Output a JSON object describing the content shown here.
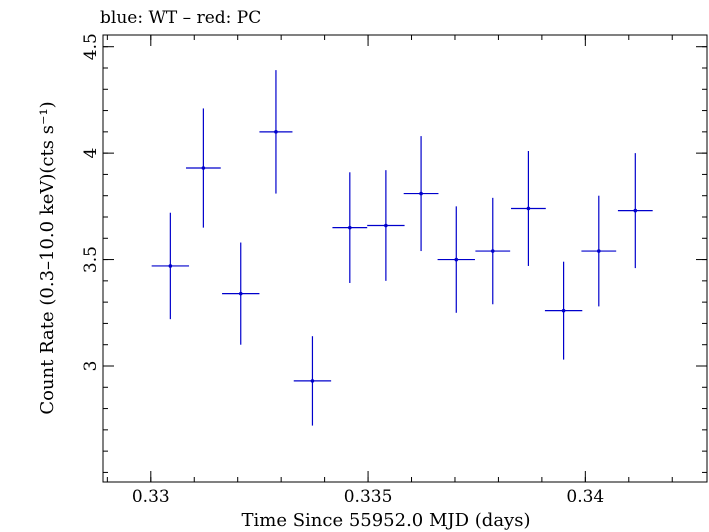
{
  "chart_data": {
    "type": "scatter",
    "title": "blue: WT – red: PC",
    "xlabel": "Time Since 55952.0 MJD (days)",
    "ylabel": "Count Rate (0.3–10.0 keV)(cts s⁻¹)",
    "xlim": [
      0.3289,
      0.3428
    ],
    "ylim": [
      2.455,
      4.555
    ],
    "xticks": [
      {
        "value": 0.33,
        "label": "0.33"
      },
      {
        "value": 0.335,
        "label": "0.335"
      },
      {
        "value": 0.34,
        "label": "0.34"
      }
    ],
    "yticks": [
      {
        "value": 3.0,
        "label": "3"
      },
      {
        "value": 3.5,
        "label": "3.5"
      },
      {
        "value": 4.0,
        "label": "4"
      },
      {
        "value": 4.5,
        "label": "4.5"
      }
    ],
    "x_minor_step": 0.001,
    "y_minor_step": 0.1,
    "grid": false,
    "series": [
      {
        "color": "#0000cc",
        "points": [
          {
            "x": 0.33045,
            "xerr": 0.00043,
            "y": 3.47,
            "yerr": 0.25
          },
          {
            "x": 0.33121,
            "xerr": 0.0004,
            "y": 3.93,
            "yerr": 0.28
          },
          {
            "x": 0.33207,
            "xerr": 0.00043,
            "y": 3.34,
            "yerr": 0.24
          },
          {
            "x": 0.33288,
            "xerr": 0.00038,
            "y": 4.1,
            "yerr": 0.29
          },
          {
            "x": 0.33372,
            "xerr": 0.00043,
            "y": 2.93,
            "yerr": 0.21
          },
          {
            "x": 0.33458,
            "xerr": 0.0004,
            "y": 3.65,
            "yerr": 0.26
          },
          {
            "x": 0.33541,
            "xerr": 0.00043,
            "y": 3.66,
            "yerr": 0.26
          },
          {
            "x": 0.33622,
            "xerr": 0.0004,
            "y": 3.81,
            "yerr": 0.27
          },
          {
            "x": 0.33703,
            "xerr": 0.00043,
            "y": 3.5,
            "yerr": 0.25
          },
          {
            "x": 0.33787,
            "xerr": 0.0004,
            "y": 3.54,
            "yerr": 0.25
          },
          {
            "x": 0.33869,
            "xerr": 0.0004,
            "y": 3.74,
            "yerr": 0.27
          },
          {
            "x": 0.3395,
            "xerr": 0.00043,
            "y": 3.26,
            "yerr": 0.23
          },
          {
            "x": 0.34031,
            "xerr": 0.0004,
            "y": 3.54,
            "yerr": 0.26
          },
          {
            "x": 0.34115,
            "xerr": 0.0004,
            "y": 3.73,
            "yerr": 0.27
          }
        ]
      }
    ]
  }
}
